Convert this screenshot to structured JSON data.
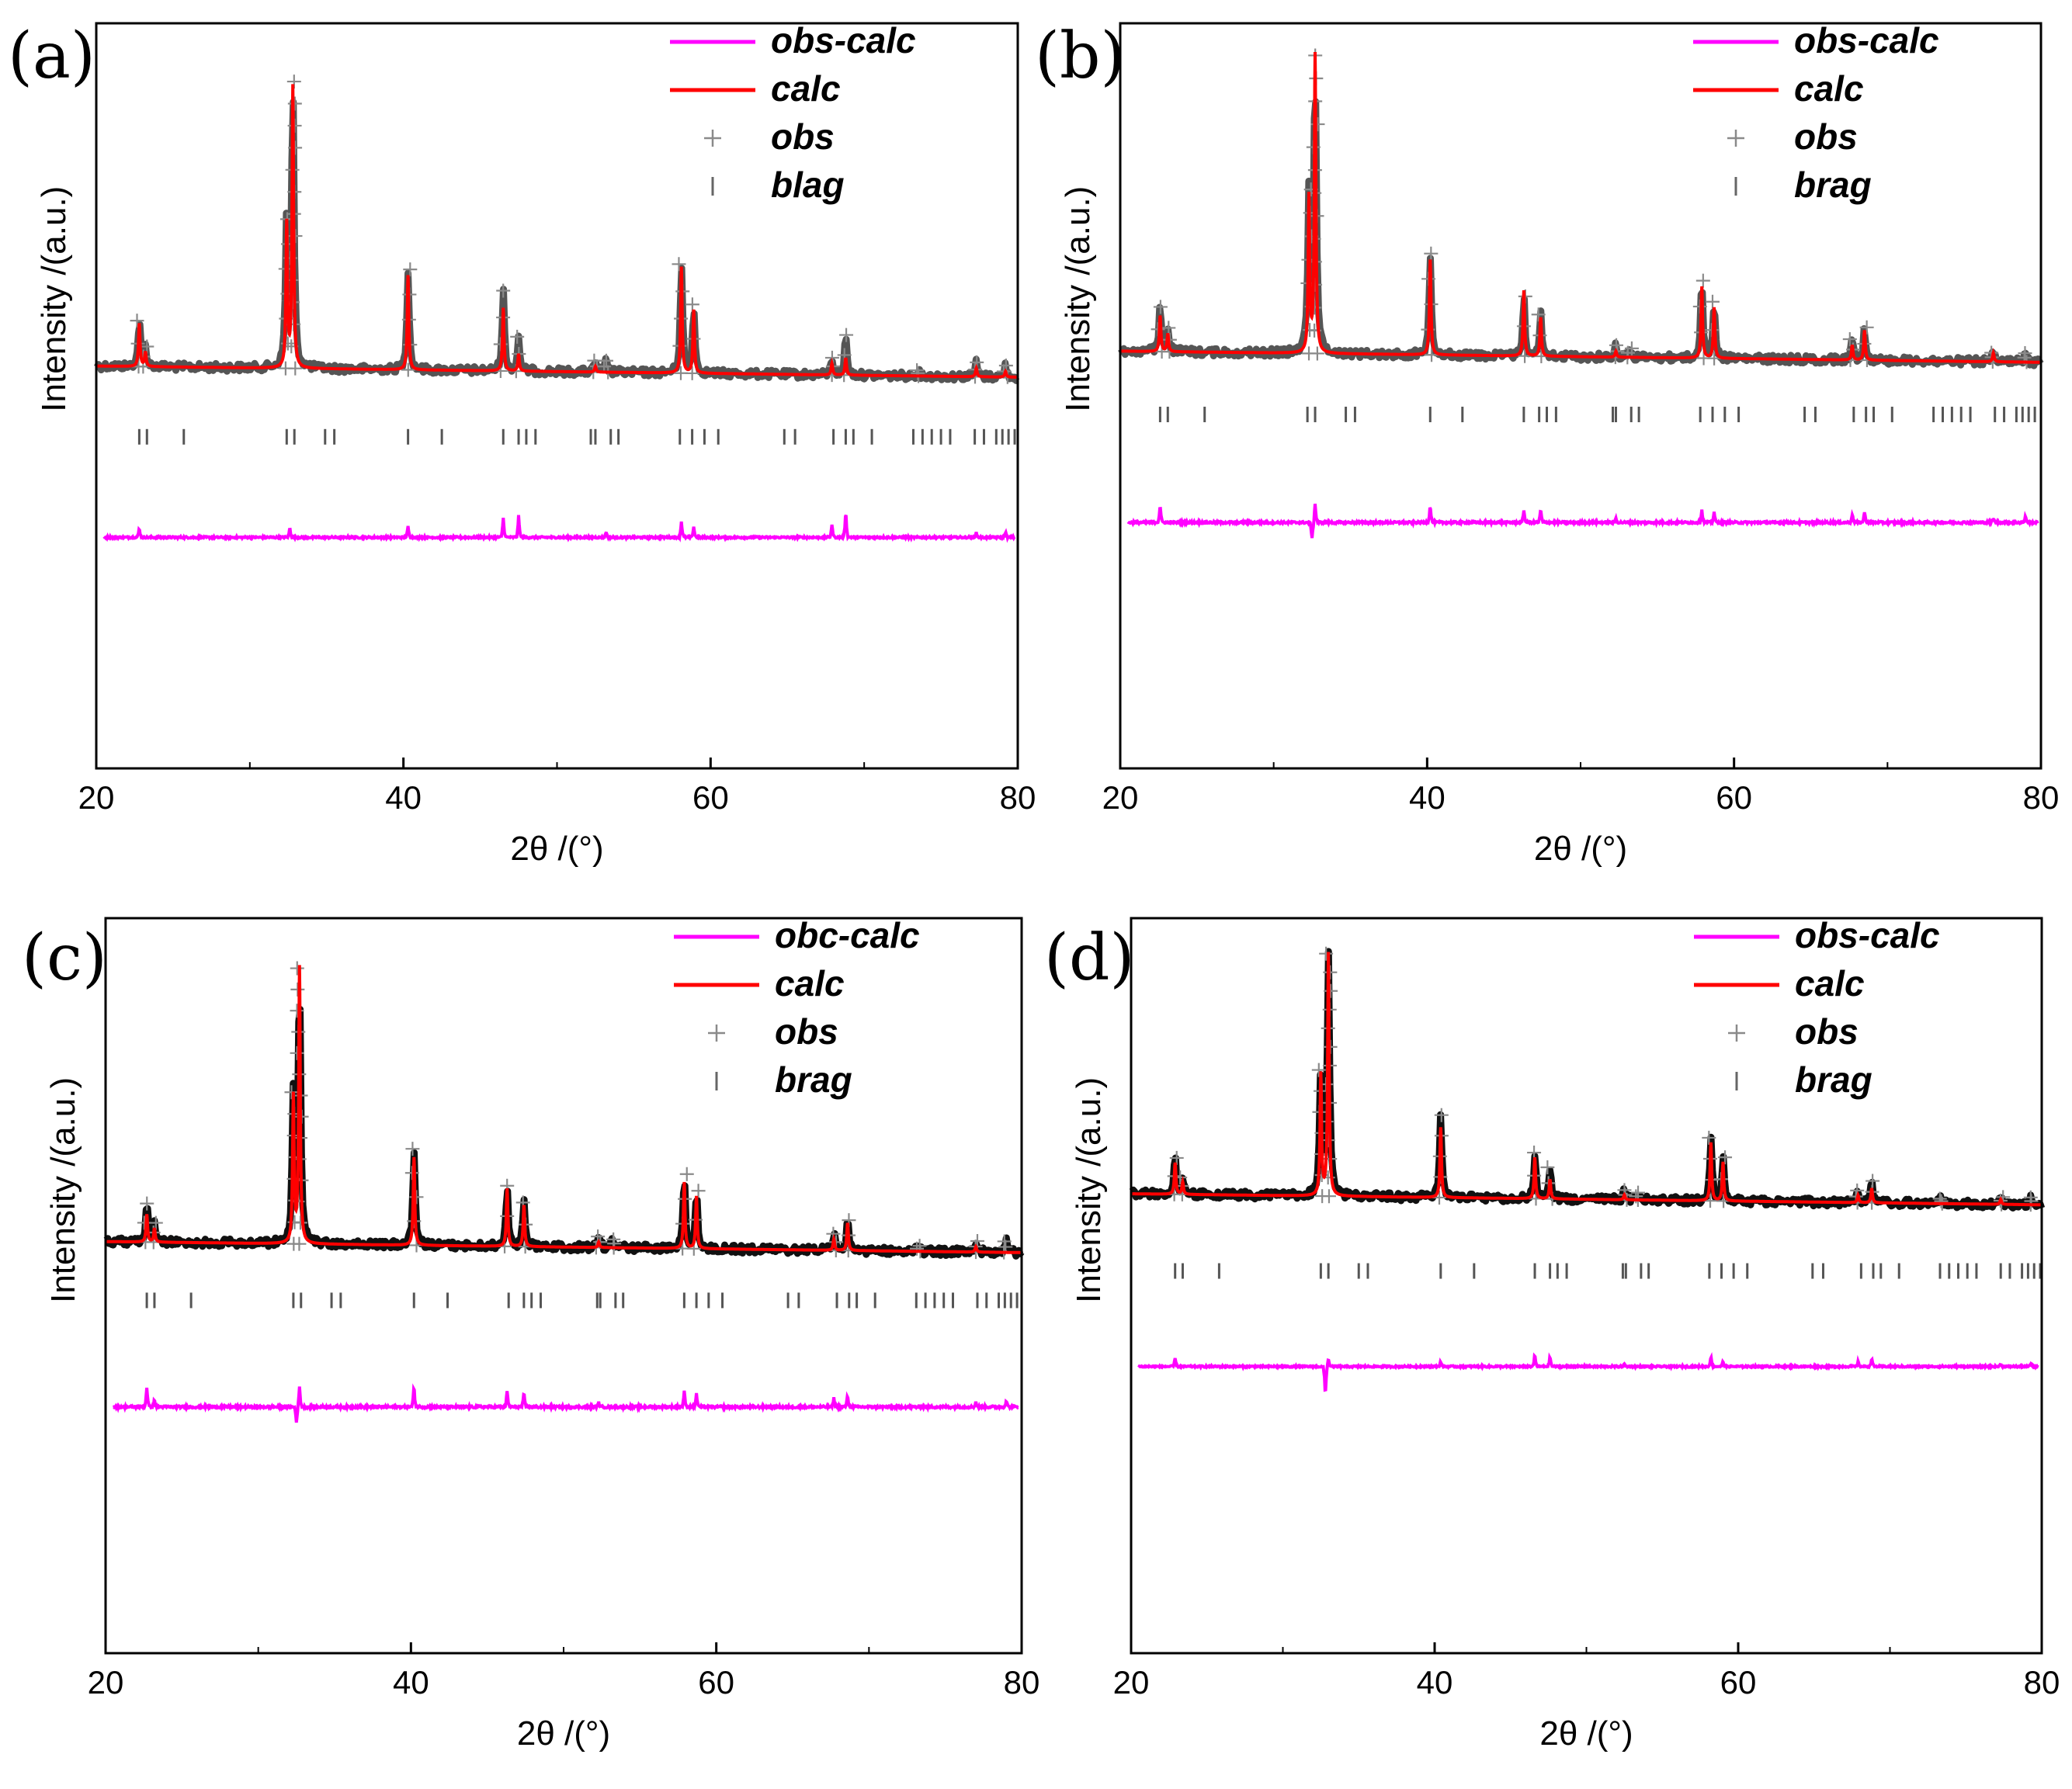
{
  "chart_data": [
    {
      "type": "line",
      "panel": "(a)",
      "xlabel": "2θ /(°)",
      "ylabel": "Intensity /(a.u.)",
      "xlim": [
        20,
        80
      ],
      "xticks": [
        "20",
        "40",
        "60",
        "80"
      ],
      "legend": [
        "obs-calc",
        "calc",
        "obs",
        "blag"
      ],
      "legend_position": "top-right",
      "series": [
        {
          "name": "calc",
          "color": "#ff0000",
          "peaks": [
            [
              22.8,
              0.15
            ],
            [
              23.2,
              0.05
            ],
            [
              32.4,
              0.5
            ],
            [
              32.8,
              0.98
            ],
            [
              40.3,
              0.33
            ],
            [
              46.5,
              0.22
            ],
            [
              47.5,
              0.06
            ],
            [
              52.5,
              0.02
            ],
            [
              58.1,
              0.37
            ],
            [
              58.9,
              0.22
            ],
            [
              67.9,
              0.04
            ],
            [
              68.8,
              0.06
            ],
            [
              77.3,
              0.03
            ],
            [
              79.2,
              0.02
            ]
          ],
          "background": 0.02
        },
        {
          "name": "obs",
          "color": "#555555",
          "peaks": [
            [
              22.8,
              0.16
            ],
            [
              23.2,
              0.07
            ],
            [
              32.4,
              0.52
            ],
            [
              32.8,
              1.0
            ],
            [
              40.3,
              0.35
            ],
            [
              46.5,
              0.28
            ],
            [
              47.5,
              0.12
            ],
            [
              52.5,
              0.04
            ],
            [
              53.2,
              0.04
            ],
            [
              58.1,
              0.38
            ],
            [
              58.9,
              0.24
            ],
            [
              67.9,
              0.06
            ],
            [
              68.8,
              0.14
            ],
            [
              73.5,
              0.02
            ],
            [
              77.3,
              0.05
            ],
            [
              79.2,
              0.04
            ]
          ],
          "background": 0.02
        },
        {
          "name": "obs-calc",
          "color": "#ff00ff",
          "spikes": [
            [
              22.8,
              0.1
            ],
            [
              32.6,
              0.1
            ],
            [
              40.3,
              0.12
            ],
            [
              46.5,
              0.22
            ],
            [
              47.5,
              0.24
            ],
            [
              53.2,
              0.06
            ],
            [
              58.1,
              0.18
            ],
            [
              58.9,
              0.12
            ],
            [
              67.9,
              0.14
            ],
            [
              68.8,
              0.28
            ],
            [
              77.3,
              0.05
            ],
            [
              79.2,
              0.06
            ]
          ]
        }
      ],
      "bragg": [
        22.8,
        23.3,
        25.7,
        32.4,
        32.9,
        34.9,
        35.5,
        40.3,
        42.5,
        46.5,
        47.5,
        48.0,
        48.6,
        52.2,
        52.5,
        53.5,
        54.0,
        58.0,
        58.8,
        59.6,
        60.5,
        64.8,
        65.5,
        68.0,
        68.8,
        69.3,
        70.5,
        73.2,
        73.8,
        74.4,
        75.0,
        75.6,
        77.2,
        77.8,
        78.6,
        79.0,
        79.4,
        79.8
      ]
    },
    {
      "type": "line",
      "panel": "(b)",
      "xlabel": "2θ /(°)",
      "ylabel": "Intensity /(a.u.)",
      "xlim": [
        20,
        80
      ],
      "xticks": [
        "20",
        "40",
        "60",
        "80"
      ],
      "legend": [
        "obs-calc",
        "calc",
        "obs",
        "brag"
      ],
      "legend_position": "top-right",
      "series": [
        {
          "name": "calc",
          "color": "#ff0000",
          "peaks": [
            [
              22.6,
              0.12
            ],
            [
              23.1,
              0.06
            ],
            [
              32.3,
              0.52
            ],
            [
              32.7,
              1.0
            ],
            [
              40.2,
              0.32
            ],
            [
              46.3,
              0.22
            ],
            [
              47.4,
              0.13
            ],
            [
              52.3,
              0.02
            ],
            [
              57.9,
              0.24
            ],
            [
              58.7,
              0.17
            ],
            [
              67.7,
              0.05
            ],
            [
              68.5,
              0.1
            ],
            [
              76.9,
              0.03
            ]
          ],
          "background": 0.02
        },
        {
          "name": "obs",
          "color": "#555555",
          "peaks": [
            [
              22.6,
              0.15
            ],
            [
              23.1,
              0.08
            ],
            [
              32.3,
              0.55
            ],
            [
              32.7,
              1.0
            ],
            [
              40.2,
              0.34
            ],
            [
              46.3,
              0.2
            ],
            [
              47.4,
              0.14
            ],
            [
              52.3,
              0.04
            ],
            [
              53.2,
              0.03
            ],
            [
              57.9,
              0.26
            ],
            [
              58.7,
              0.19
            ],
            [
              67.7,
              0.07
            ],
            [
              68.5,
              0.11
            ],
            [
              76.9,
              0.03
            ],
            [
              79.0,
              0.03
            ]
          ],
          "background": 0.02
        },
        {
          "name": "obs-calc",
          "color": "#ff00ff",
          "spikes": [
            [
              22.6,
              0.16
            ],
            [
              32.5,
              -0.16
            ],
            [
              32.7,
              0.18
            ],
            [
              40.2,
              0.16
            ],
            [
              46.3,
              0.12
            ],
            [
              47.4,
              0.12
            ],
            [
              52.3,
              0.04
            ],
            [
              57.9,
              0.12
            ],
            [
              58.7,
              0.1
            ],
            [
              67.7,
              0.08
            ],
            [
              68.5,
              0.1
            ],
            [
              76.9,
              0.04
            ],
            [
              79.0,
              0.06
            ]
          ]
        }
      ],
      "bragg": [
        22.6,
        23.1,
        25.5,
        32.2,
        32.7,
        34.7,
        35.3,
        40.2,
        42.3,
        46.3,
        47.3,
        47.8,
        48.4,
        52.1,
        52.3,
        53.3,
        53.8,
        57.8,
        58.6,
        59.4,
        60.3,
        64.6,
        65.3,
        67.8,
        68.6,
        69.1,
        70.3,
        73.0,
        73.6,
        74.2,
        74.8,
        75.4,
        77.0,
        77.6,
        78.4,
        78.8,
        79.2,
        79.6
      ]
    },
    {
      "type": "line",
      "panel": "(c)",
      "xlabel": "2θ /(°)",
      "ylabel": "Intensity /(a.u.)",
      "xlim": [
        20,
        80
      ],
      "xticks": [
        "20",
        "40",
        "60",
        "80"
      ],
      "legend": [
        "obc-calc",
        "calc",
        "obs",
        "brag"
      ],
      "legend_position": "top-right",
      "series": [
        {
          "name": "calc",
          "color": "#ff0000",
          "peaks": [
            [
              22.7,
              0.1
            ],
            [
              23.2,
              0.05
            ],
            [
              32.3,
              0.53
            ],
            [
              32.7,
              1.0
            ],
            [
              40.2,
              0.32
            ],
            [
              46.3,
              0.21
            ],
            [
              47.4,
              0.15
            ],
            [
              52.3,
              0.02
            ],
            [
              57.9,
              0.24
            ],
            [
              58.7,
              0.19
            ],
            [
              67.7,
              0.04
            ],
            [
              68.6,
              0.1
            ],
            [
              77.0,
              0.02
            ]
          ],
          "background": 0.02
        },
        {
          "name": "obs",
          "color": "#111111",
          "peaks": [
            [
              22.7,
              0.14
            ],
            [
              23.2,
              0.07
            ],
            [
              32.3,
              0.55
            ],
            [
              32.7,
              1.0
            ],
            [
              40.2,
              0.35
            ],
            [
              46.3,
              0.22
            ],
            [
              47.4,
              0.16
            ],
            [
              52.3,
              0.04
            ],
            [
              53.2,
              0.03
            ],
            [
              57.9,
              0.27
            ],
            [
              58.7,
              0.21
            ],
            [
              67.7,
              0.06
            ],
            [
              68.6,
              0.11
            ],
            [
              73.2,
              0.02
            ],
            [
              77.0,
              0.04
            ],
            [
              79.0,
              0.04
            ]
          ],
          "background": 0.02
        },
        {
          "name": "obs-calc",
          "color": "#ff00ff",
          "spikes": [
            [
              22.7,
              0.18
            ],
            [
              23.2,
              0.06
            ],
            [
              32.5,
              -0.14
            ],
            [
              32.7,
              0.18
            ],
            [
              40.2,
              0.18
            ],
            [
              46.3,
              0.14
            ],
            [
              47.4,
              0.12
            ],
            [
              52.3,
              0.04
            ],
            [
              57.9,
              0.14
            ],
            [
              58.7,
              0.12
            ],
            [
              67.7,
              0.08
            ],
            [
              68.6,
              0.1
            ],
            [
              77.0,
              0.04
            ],
            [
              79.0,
              0.06
            ]
          ]
        }
      ],
      "bragg": [
        22.7,
        23.2,
        25.6,
        32.3,
        32.8,
        34.8,
        35.4,
        40.2,
        42.4,
        46.4,
        47.4,
        47.9,
        48.5,
        52.2,
        52.4,
        53.4,
        53.9,
        57.9,
        58.7,
        59.5,
        60.4,
        64.7,
        65.4,
        67.9,
        68.7,
        69.2,
        70.4,
        73.1,
        73.7,
        74.3,
        74.9,
        75.5,
        77.1,
        77.7,
        78.5,
        78.9,
        79.3,
        79.7
      ]
    },
    {
      "type": "line",
      "panel": "(d)",
      "xlabel": "2θ /(°)",
      "ylabel": "Intensity /(a.u.)",
      "xlim": [
        20,
        80
      ],
      "xticks": [
        "20",
        "40",
        "60",
        "80"
      ],
      "legend": [
        "obs-calc",
        "calc",
        "obs",
        "brag"
      ],
      "legend_position": "top-right",
      "series": [
        {
          "name": "calc",
          "color": "#ff0000",
          "peaks": [
            [
              22.9,
              0.13
            ],
            [
              23.4,
              0.05
            ],
            [
              32.5,
              0.5
            ],
            [
              33.0,
              1.0
            ],
            [
              40.4,
              0.29
            ],
            [
              46.6,
              0.17
            ],
            [
              47.6,
              0.08
            ],
            [
              52.5,
              0.02
            ],
            [
              58.2,
              0.24
            ],
            [
              59.0,
              0.16
            ],
            [
              67.9,
              0.03
            ],
            [
              68.8,
              0.06
            ],
            [
              77.3,
              0.02
            ]
          ],
          "background": 0.02
        },
        {
          "name": "obs",
          "color": "#111111",
          "peaks": [
            [
              22.9,
              0.15
            ],
            [
              23.4,
              0.07
            ],
            [
              32.5,
              0.52
            ],
            [
              33.0,
              1.0
            ],
            [
              40.4,
              0.34
            ],
            [
              46.6,
              0.19
            ],
            [
              47.6,
              0.13
            ],
            [
              52.5,
              0.04
            ],
            [
              53.3,
              0.03
            ],
            [
              58.2,
              0.26
            ],
            [
              59.0,
              0.18
            ],
            [
              67.9,
              0.05
            ],
            [
              68.8,
              0.09
            ],
            [
              73.3,
              0.02
            ],
            [
              77.3,
              0.03
            ],
            [
              79.3,
              0.03
            ]
          ],
          "background": 0.02
        },
        {
          "name": "obs-calc",
          "color": "#ff00ff",
          "spikes": [
            [
              22.9,
              0.1
            ],
            [
              32.8,
              -0.34
            ],
            [
              33.0,
              0.1
            ],
            [
              40.4,
              0.06
            ],
            [
              46.6,
              0.14
            ],
            [
              47.6,
              0.12
            ],
            [
              52.5,
              0.03
            ],
            [
              58.2,
              0.12
            ],
            [
              59.0,
              0.06
            ],
            [
              67.9,
              0.06
            ],
            [
              68.8,
              0.1
            ],
            [
              77.3,
              0.03
            ],
            [
              79.3,
              0.04
            ]
          ]
        }
      ],
      "bragg": [
        22.9,
        23.4,
        25.8,
        32.5,
        33.0,
        35.0,
        35.6,
        40.4,
        42.6,
        46.6,
        47.6,
        48.1,
        48.7,
        52.4,
        52.6,
        53.6,
        54.1,
        58.1,
        58.9,
        59.7,
        60.6,
        64.9,
        65.6,
        68.1,
        68.9,
        69.4,
        70.6,
        73.3,
        73.9,
        74.5,
        75.1,
        75.7,
        77.3,
        77.9,
        78.7,
        79.1,
        79.5,
        79.9
      ]
    }
  ]
}
